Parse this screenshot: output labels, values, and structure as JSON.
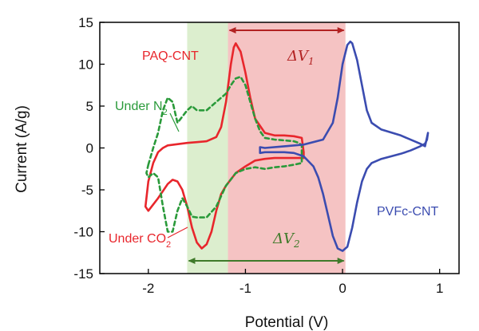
{
  "chart_data": {
    "type": "line",
    "title": "",
    "xlabel": "Potential (V)",
    "ylabel": "Current (A/g)",
    "xlim": [
      -2.5,
      1.2
    ],
    "ylim": [
      -15,
      15
    ],
    "xticks": [
      -2,
      -1,
      0,
      1
    ],
    "yticks": [
      -15,
      -10,
      -5,
      0,
      5,
      10,
      15
    ],
    "grid": false,
    "colors": {
      "paq": "#e8262c",
      "n2": "#2a9a3a",
      "pvfc": "#3b4cb0",
      "green_band": "#d8ecc9",
      "red_band": "#f4bcbc",
      "dv1_arrow": "#b22222",
      "dv2_arrow": "#3f7a2a"
    },
    "bands": [
      {
        "name": "green-band",
        "x": [
          -1.6,
          -1.18
        ]
      },
      {
        "name": "red-band",
        "x": [
          -1.18,
          0.03
        ]
      }
    ],
    "series": [
      {
        "name": "PAQ-CNT",
        "style": "solid",
        "x": [
          -1.8,
          -1.6,
          -1.5,
          -1.4,
          -1.3,
          -1.25,
          -1.2,
          -1.15,
          -1.12,
          -1.1,
          -1.05,
          -1.0,
          -0.95,
          -0.9,
          -0.8,
          -0.7,
          -0.6,
          -0.5,
          -0.42,
          -0.4,
          -0.4,
          -0.5,
          -0.6,
          -0.7,
          -0.8,
          -0.9,
          -1.0,
          -1.1,
          -1.2,
          -1.25,
          -1.3,
          -1.35,
          -1.4,
          -1.45,
          -1.5,
          -1.55,
          -1.6,
          -1.65,
          -1.7,
          -1.75,
          -1.8,
          -1.9,
          -2.0,
          -2.03,
          -2.0,
          -1.95,
          -1.9,
          -1.85,
          -1.8
        ],
        "y": [
          0.3,
          0.6,
          0.7,
          0.8,
          1.3,
          2.5,
          5.5,
          10.0,
          12.0,
          12.5,
          11.5,
          9.0,
          6.0,
          3.5,
          1.8,
          1.5,
          1.5,
          1.4,
          1.2,
          -0.5,
          -1.2,
          -1.2,
          -1.2,
          -1.2,
          -1.3,
          -1.5,
          -2.2,
          -3.0,
          -4.5,
          -5.5,
          -7.5,
          -10.0,
          -11.5,
          -12.0,
          -11.3,
          -9.5,
          -7.0,
          -5.0,
          -4.0,
          -3.8,
          -4.3,
          -6.0,
          -7.5,
          -7.0,
          -4.0,
          -1.8,
          -0.5,
          0.0,
          0.3
        ]
      },
      {
        "name": "Under N2",
        "style": "dashed",
        "x": [
          -2.0,
          -1.95,
          -1.9,
          -1.85,
          -1.8,
          -1.75,
          -1.7,
          -1.6,
          -1.55,
          -1.5,
          -1.4,
          -1.3,
          -1.2,
          -1.15,
          -1.1,
          -1.05,
          -1.0,
          -0.95,
          -0.9,
          -0.85,
          -0.8,
          -0.7,
          -0.6,
          -0.5,
          -0.45,
          -0.42,
          -0.42,
          -0.5,
          -0.6,
          -0.7,
          -0.8,
          -0.9,
          -1.0,
          -1.1,
          -1.2,
          -1.3,
          -1.4,
          -1.5,
          -1.55,
          -1.6,
          -1.65,
          -1.7,
          -1.75,
          -1.8,
          -1.85,
          -1.9,
          -1.95,
          -2.0,
          -2.02,
          -2.0
        ],
        "y": [
          -2.0,
          0.0,
          1.8,
          4.5,
          6.0,
          5.5,
          3.0,
          4.5,
          5.0,
          4.5,
          4.5,
          5.5,
          6.5,
          7.5,
          8.3,
          8.5,
          7.5,
          5.5,
          3.5,
          2.0,
          1.2,
          1.0,
          0.9,
          0.8,
          0.6,
          0.3,
          -1.8,
          -2.0,
          -2.2,
          -2.3,
          -2.5,
          -2.3,
          -2.5,
          -3.0,
          -4.5,
          -7.0,
          -8.3,
          -8.3,
          -8.2,
          -7.0,
          -6.0,
          -7.5,
          -10.0,
          -10.0,
          -7.0,
          -3.5,
          -3.0,
          -3.5,
          -3.0,
          -2.0
        ]
      },
      {
        "name": "PVFc-CNT",
        "style": "solid",
        "x": [
          -0.8,
          -0.6,
          -0.4,
          -0.2,
          -0.1,
          -0.05,
          0.0,
          0.05,
          0.08,
          0.1,
          0.15,
          0.2,
          0.25,
          0.3,
          0.4,
          0.6,
          0.8,
          0.85,
          0.88,
          0.87,
          0.85,
          0.8,
          0.7,
          0.6,
          0.5,
          0.4,
          0.3,
          0.25,
          0.2,
          0.15,
          0.1,
          0.05,
          0.0,
          -0.05,
          -0.1,
          -0.15,
          -0.2,
          -0.25,
          -0.3,
          -0.4,
          -0.5,
          -0.6,
          -0.7,
          -0.8,
          -0.85,
          -0.85,
          -0.8
        ],
        "y": [
          0.0,
          0.2,
          0.4,
          1.0,
          3.0,
          6.0,
          10.0,
          12.3,
          12.7,
          12.5,
          10.5,
          7.5,
          4.5,
          3.0,
          2.2,
          1.5,
          0.5,
          0.2,
          1.8,
          1.0,
          0.5,
          0.2,
          -0.3,
          -0.7,
          -1.0,
          -1.3,
          -1.8,
          -2.5,
          -4.0,
          -6.5,
          -9.5,
          -11.8,
          -12.3,
          -12.0,
          -10.5,
          -8.0,
          -5.5,
          -3.5,
          -2.2,
          -1.0,
          -0.6,
          -0.5,
          -0.5,
          -0.5,
          -0.6,
          0.1,
          0.0
        ]
      }
    ],
    "annotations": {
      "paq_label": "PAQ-CNT",
      "n2_label_main": "Under N",
      "n2_label_sub": "2",
      "co2_label_main": "Under CO",
      "co2_label_sub": "2",
      "pvfc_label": "PVFc-CNT",
      "dv1_main": "ΔV",
      "dv1_sub": "1",
      "dv2_main": "ΔV",
      "dv2_sub": "2"
    }
  }
}
